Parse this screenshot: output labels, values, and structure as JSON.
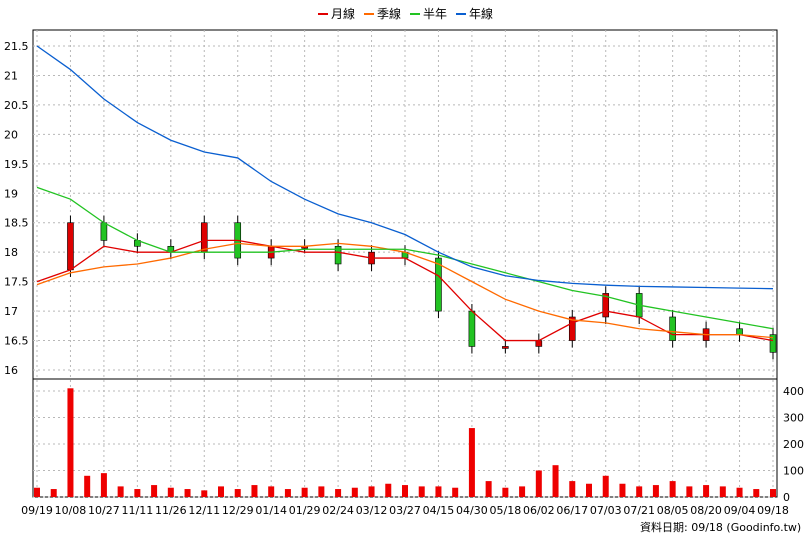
{
  "chart_data": {
    "type": "line",
    "legend": {
      "position": "top-center",
      "items": [
        {
          "label": "月線",
          "color": "#e00000"
        },
        {
          "label": "季線",
          "color": "#ff6a00"
        },
        {
          "label": "半年",
          "color": "#22c322"
        },
        {
          "label": "年線",
          "color": "#0a5fd0"
        }
      ]
    },
    "price_axis": {
      "ylim": [
        16.0,
        21.5
      ],
      "ticks": [
        "21.5",
        "21",
        "20.5",
        "20",
        "19.5",
        "19",
        "18.5",
        "18",
        "17.5",
        "17",
        "16.5",
        "16"
      ]
    },
    "volume_axis": {
      "ylim": [
        0,
        430
      ],
      "ticks": [
        "400",
        "300",
        "200",
        "100",
        "0"
      ]
    },
    "x_ticks": [
      "09/19",
      "10/08",
      "10/27",
      "11/11",
      "11/26",
      "12/11",
      "12/29",
      "01/14",
      "01/29",
      "02/24",
      "03/12",
      "03/27",
      "04/15",
      "04/30",
      "05/18",
      "06/02",
      "06/17",
      "07/03",
      "07/21",
      "08/05",
      "08/20",
      "09/04",
      "09/18"
    ],
    "grid": true,
    "series": [
      {
        "name": "月線",
        "color": "#e00000",
        "x": [
          0,
          1,
          2,
          3,
          4,
          5,
          6,
          7,
          8,
          9,
          10,
          11,
          12,
          13,
          14,
          15,
          16,
          17,
          18,
          19,
          20,
          21,
          22
        ],
        "values": [
          17.5,
          17.7,
          18.1,
          18.0,
          18.0,
          18.2,
          18.2,
          18.1,
          18.0,
          18.0,
          17.9,
          17.9,
          17.6,
          17.0,
          16.5,
          16.5,
          16.8,
          17.0,
          16.9,
          16.6,
          16.6,
          16.6,
          16.5
        ]
      },
      {
        "name": "季線",
        "color": "#ff6a00",
        "x": [
          0,
          1,
          2,
          3,
          4,
          5,
          6,
          7,
          8,
          9,
          10,
          11,
          12,
          13,
          14,
          15,
          16,
          17,
          18,
          19,
          20,
          21,
          22
        ],
        "values": [
          17.45,
          17.65,
          17.75,
          17.8,
          17.9,
          18.05,
          18.15,
          18.1,
          18.1,
          18.15,
          18.1,
          18.0,
          17.8,
          17.5,
          17.2,
          17.0,
          16.85,
          16.8,
          16.7,
          16.65,
          16.6,
          16.6,
          16.55
        ]
      },
      {
        "name": "半年",
        "color": "#22c322",
        "x": [
          0,
          1,
          2,
          3,
          4,
          5,
          6,
          7,
          8,
          9,
          10,
          11,
          12,
          13,
          14,
          15,
          16,
          17,
          18,
          19,
          20,
          21,
          22
        ],
        "values": [
          19.1,
          18.9,
          18.5,
          18.2,
          18.0,
          18.0,
          18.0,
          18.0,
          18.05,
          18.05,
          18.05,
          18.05,
          17.95,
          17.8,
          17.65,
          17.5,
          17.35,
          17.25,
          17.1,
          17.0,
          16.9,
          16.8,
          16.7
        ]
      },
      {
        "name": "年線",
        "color": "#0a5fd0",
        "x": [
          0,
          1,
          2,
          3,
          4,
          5,
          6,
          7,
          8,
          9,
          10,
          11,
          12,
          13,
          14,
          15,
          16,
          17,
          18,
          19,
          20,
          21,
          22
        ],
        "values": [
          21.5,
          21.1,
          20.6,
          20.2,
          19.9,
          19.7,
          19.6,
          19.2,
          18.9,
          18.65,
          18.5,
          18.3,
          18.0,
          17.75,
          17.6,
          17.52,
          17.47,
          17.44,
          17.42,
          17.41,
          17.4,
          17.39,
          17.38
        ]
      }
    ],
    "close_price": {
      "x": [
        0,
        1,
        2,
        3,
        4,
        5,
        6,
        7,
        8,
        9,
        10,
        11,
        12,
        13,
        14,
        15,
        16,
        17,
        18,
        19,
        20,
        21,
        22
      ],
      "values": [
        17.7,
        18.5,
        18.2,
        18.1,
        18.0,
        18.5,
        17.9,
        18.1,
        18.1,
        17.8,
        18.0,
        17.9,
        17.0,
        16.4,
        16.4,
        16.5,
        16.9,
        17.3,
        16.9,
        16.5,
        16.7,
        16.6,
        16.3
      ]
    },
    "volume": {
      "x": [
        0,
        0.5,
        1,
        1.5,
        2,
        2.5,
        3,
        3.5,
        4,
        4.5,
        5,
        5.5,
        6,
        6.5,
        7,
        7.5,
        8,
        8.5,
        9,
        9.5,
        10,
        10.5,
        11,
        11.5,
        12,
        12.5,
        13,
        13.5,
        14,
        14.5,
        15,
        15.5,
        16,
        16.5,
        17,
        17.5,
        18,
        18.5,
        19,
        19.5,
        20,
        20.5,
        21,
        21.5,
        22
      ],
      "values": [
        35,
        30,
        410,
        80,
        90,
        40,
        30,
        45,
        35,
        30,
        25,
        40,
        30,
        45,
        40,
        30,
        35,
        40,
        30,
        35,
        40,
        50,
        45,
        40,
        40,
        35,
        260,
        60,
        35,
        40,
        100,
        120,
        60,
        50,
        80,
        50,
        40,
        45,
        60,
        40,
        45,
        40,
        35,
        30,
        30
      ]
    }
  },
  "footer": {
    "source": "資料日期: 09/18  (Goodinfo.tw)"
  }
}
